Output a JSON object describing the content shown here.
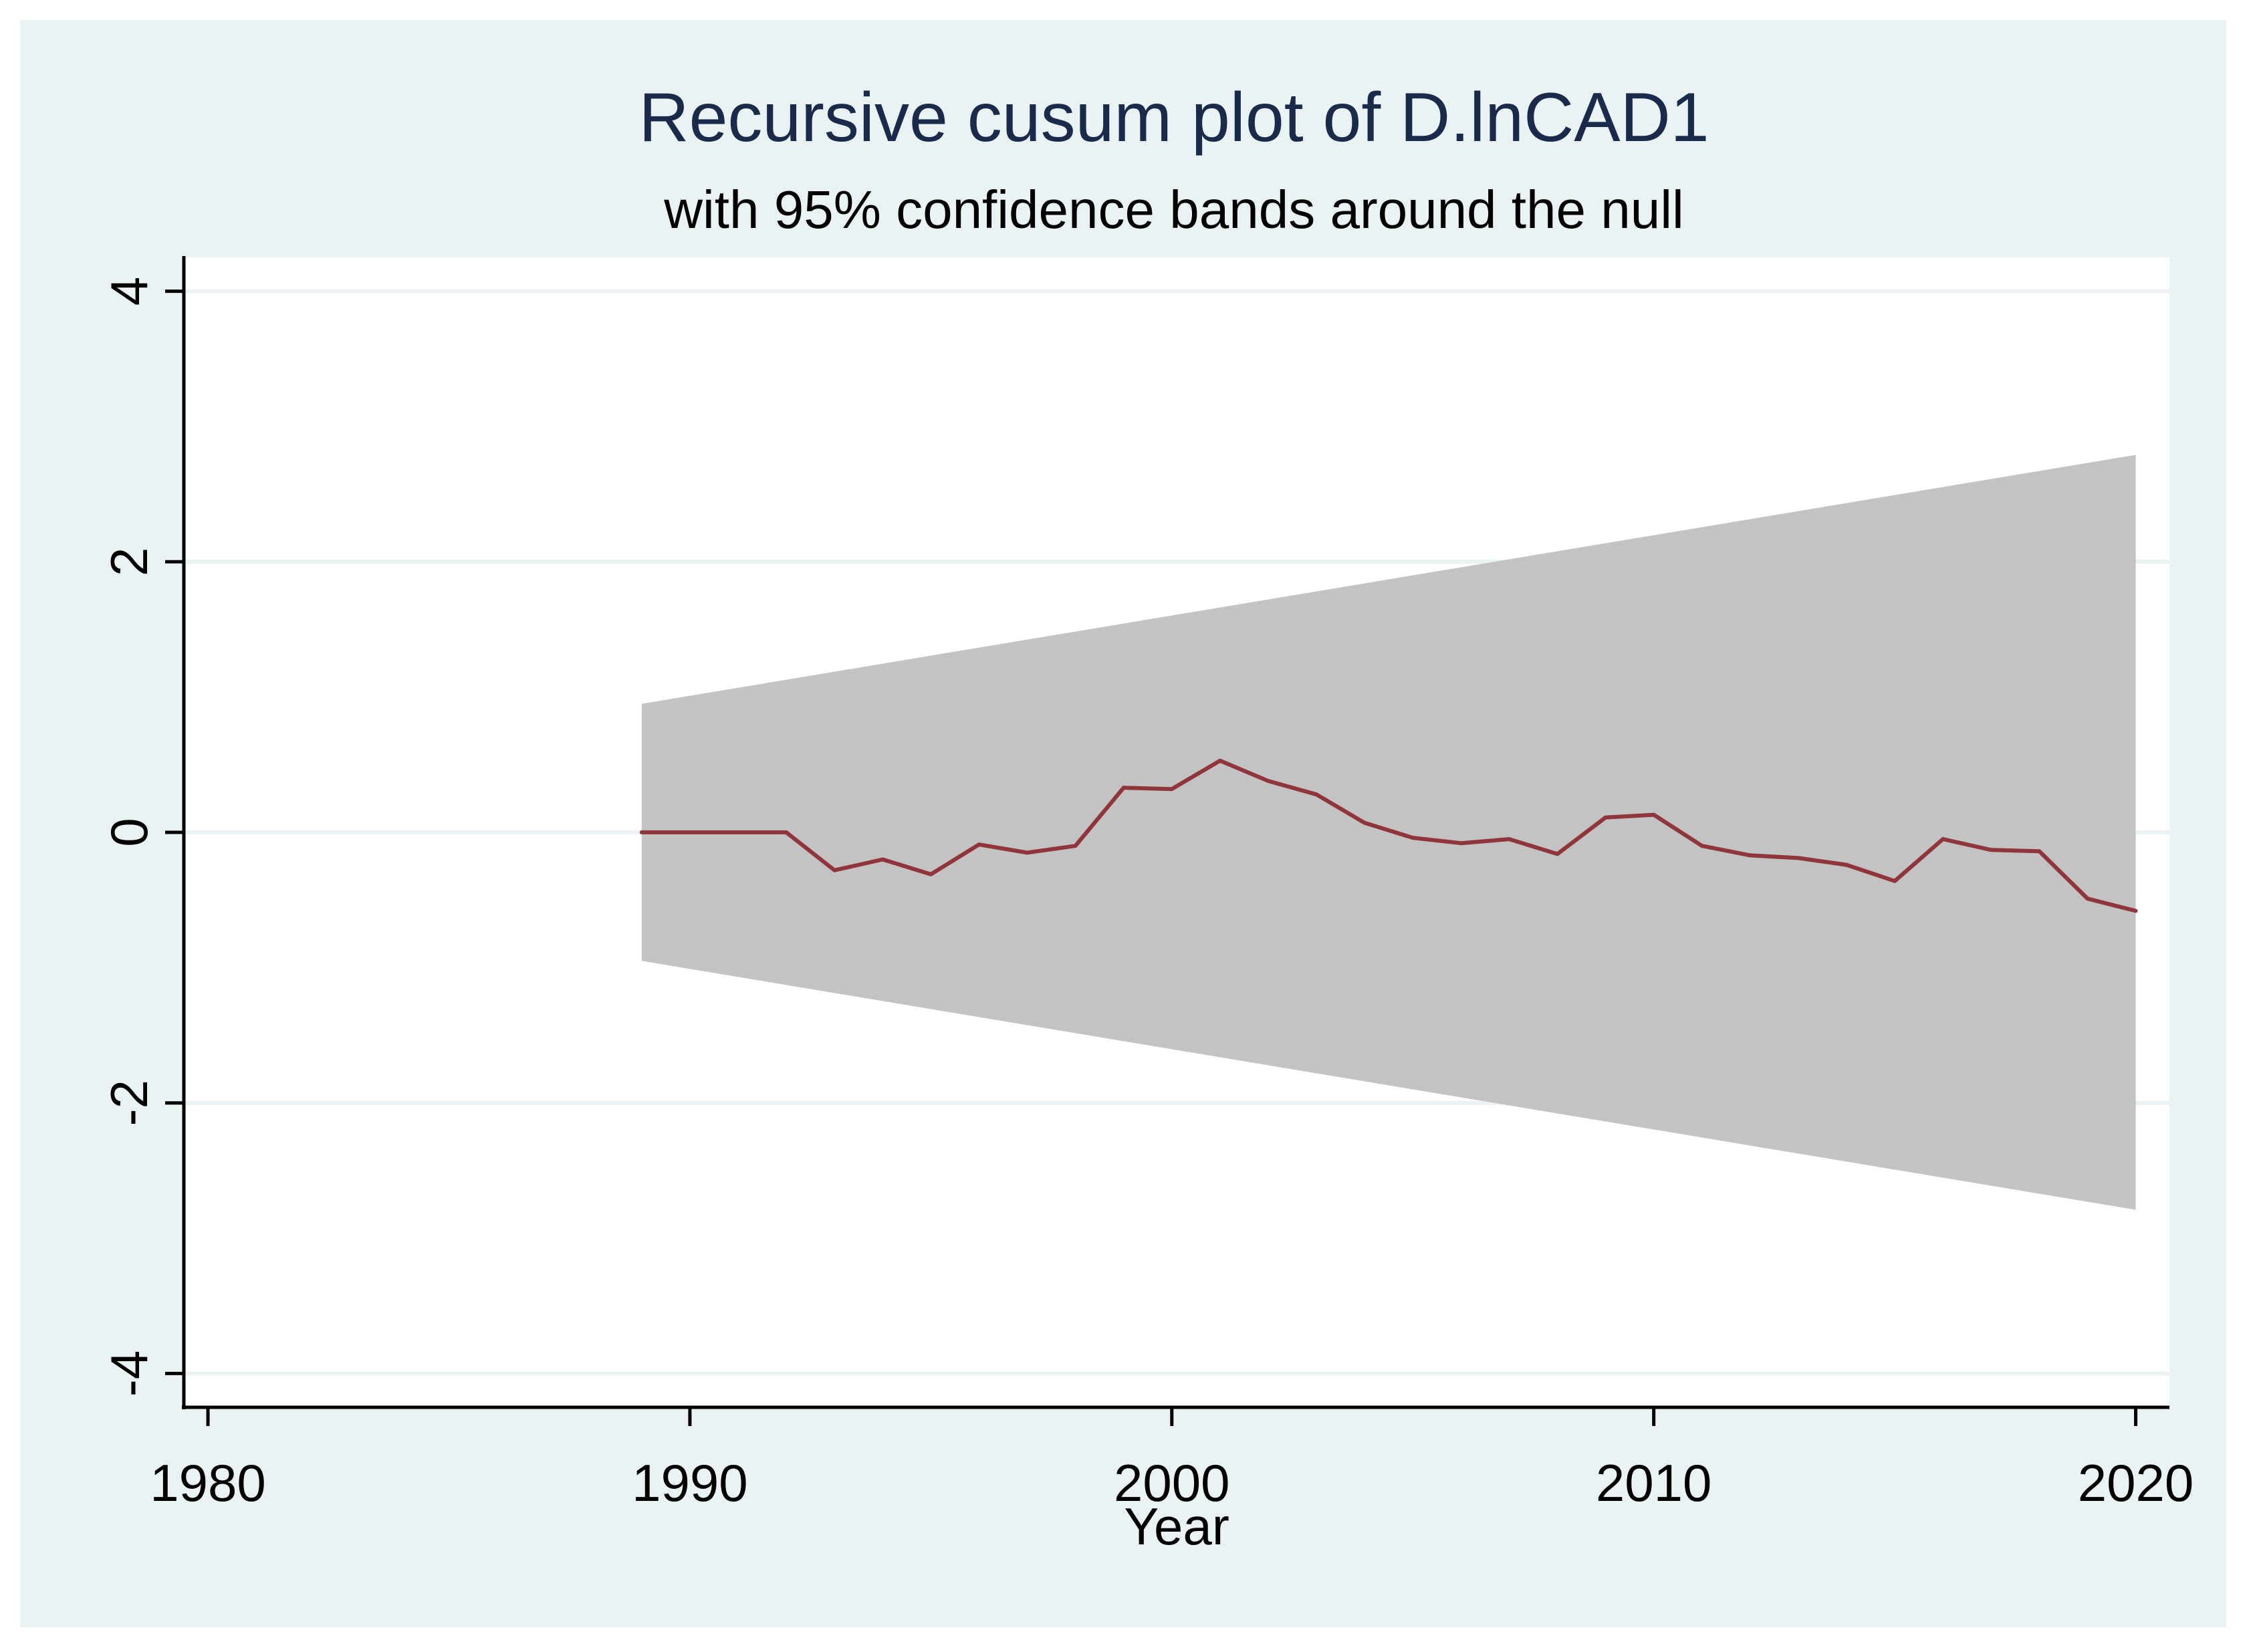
{
  "chart_data": {
    "type": "line",
    "title": "Recursive cusum plot of D.lnCAD1",
    "subtitle": "with 95% confidence bands around the null",
    "xlabel": "Year",
    "ylabel": "",
    "xlim": [
      1979.5,
      2020.7
    ],
    "ylim": [
      -4.25,
      4.25
    ],
    "x_ticks": [
      1980,
      1990,
      2000,
      2010,
      2020
    ],
    "y_ticks": [
      -4,
      -2,
      0,
      2,
      4
    ],
    "grid": true,
    "colors": {
      "outer_background": "#eaf2f3",
      "plot_background": "#ffffff",
      "band_fill": "#c3c3c3",
      "line": "#90353b",
      "title": "#1a2a4a",
      "gridline": "#eaf2f3",
      "axis": "#000000"
    },
    "series": [
      {
        "x": [
          1989,
          1990,
          1991,
          1992,
          1993,
          1994,
          1995,
          1996,
          1997,
          1998,
          1999,
          2000,
          2001,
          2002,
          2003,
          2004,
          2005,
          2006,
          2007,
          2008,
          2009,
          2010,
          2011,
          2012,
          2013,
          2014,
          2015,
          2016,
          2017,
          2018,
          2019,
          2020
        ],
        "values": [
          0,
          0,
          0,
          0,
          -0.28,
          -0.2,
          -0.31,
          -0.09,
          -0.15,
          -0.1,
          0.33,
          0.32,
          0.53,
          0.38,
          0.28,
          0.07,
          -0.04,
          -0.08,
          -0.05,
          -0.16,
          0.11,
          0.13,
          -0.1,
          -0.17,
          -0.19,
          -0.24,
          -0.36,
          -0.05,
          -0.13,
          -0.14,
          -0.49,
          -0.58
        ]
      }
    ],
    "band": {
      "x": [
        1989,
        2020
      ],
      "upper": [
        0.95,
        2.79
      ],
      "lower": [
        -0.95,
        -2.79
      ]
    }
  }
}
